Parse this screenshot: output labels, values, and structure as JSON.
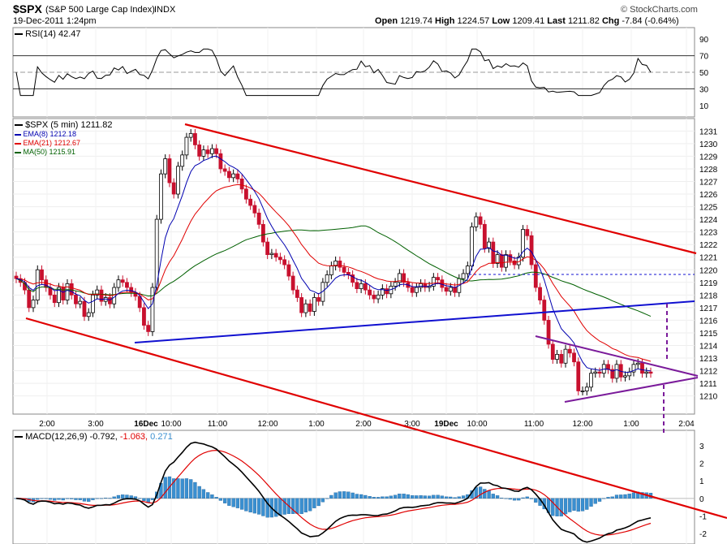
{
  "header": {
    "symbol": "$SPX",
    "name": "(S&P 500 Large Cap Index)",
    "exchange": "INDX",
    "datetime": "19-Dec-2011 1:24pm",
    "copyright": "© StockCharts.com",
    "open_label": "Open",
    "open": "1219.74",
    "high_label": "High",
    "high": "1224.57",
    "low_label": "Low",
    "low": "1209.41",
    "last_label": "Last",
    "last": "1211.82",
    "chg_label": "Chg",
    "chg": "-7.84 (-0.64%)"
  },
  "legends": {
    "rsi": "RSI(14) 42.47",
    "price": "$SPX (5 min) 1211.82",
    "ema8": "EMA(8) 1212.18",
    "ema21": "EMA(21) 1212.67",
    "ma50": "MA(50) 1215.91",
    "macd_label": "MACD(12,26,9)",
    "macd_v1": "-0.792,",
    "macd_v2": "-1.063,",
    "macd_v3": "0.271"
  },
  "colors": {
    "up_candle": "#ffffff",
    "down_candle": "#c8102e",
    "ema8": "#0000b0",
    "ema21": "#e00000",
    "ma50": "#006000",
    "trend_red": "#e00000",
    "trend_blue": "#1010d0",
    "trend_purple": "#7a1a9a",
    "histogram": "#3a8fd0"
  },
  "chart_data": {
    "type": "candlestick",
    "y_ticks": [
      "1231",
      "1230",
      "1229",
      "1228",
      "1227",
      "1226",
      "1225",
      "1224",
      "1223",
      "1222",
      "1221",
      "1220",
      "1219",
      "1218",
      "1217",
      "1216",
      "1215",
      "1214",
      "1213",
      "1212",
      "1211",
      "1210"
    ],
    "ylim": [
      1209.4,
      1231.6
    ],
    "x_ticks": [
      "2:00",
      "3:00",
      "16Dec",
      "10:00",
      "11:00",
      "12:00",
      "1:00",
      "2:00",
      "3:00",
      "19Dec",
      "10:00",
      "11:00",
      "12:00",
      "1:00",
      "2:04"
    ],
    "rsi": {
      "ylim": [
        0,
        100
      ],
      "ticks": [
        "90",
        "70",
        "50",
        "30",
        "10"
      ],
      "levels": [
        70,
        50,
        30
      ]
    },
    "macd": {
      "ylim": [
        -2.5,
        3.5
      ],
      "ticks": [
        "3",
        "2",
        "1",
        "0",
        "-1",
        "-2"
      ]
    },
    "closes": [
      1219.3,
      1219.0,
      1218.4,
      1217.0,
      1217.6,
      1220.0,
      1219.2,
      1218.6,
      1218.0,
      1217.4,
      1218.6,
      1217.6,
      1218.9,
      1218.0,
      1217.3,
      1217.5,
      1216.3,
      1216.6,
      1218.0,
      1218.4,
      1217.5,
      1217.8,
      1217.3,
      1218.6,
      1219.2,
      1219.0,
      1218.6,
      1218.2,
      1217.9,
      1217.0,
      1215.6,
      1215.1,
      1218.6,
      1224.0,
      1227.6,
      1228.8,
      1226.9,
      1226.0,
      1228.2,
      1229.1,
      1230.5,
      1230.8,
      1229.9,
      1229.0,
      1229.5,
      1229.2,
      1229.6,
      1229.2,
      1228.0,
      1227.8,
      1227.3,
      1227.6,
      1227.2,
      1226.4,
      1225.6,
      1225.1,
      1224.5,
      1223.6,
      1222.2,
      1221.2,
      1221.3,
      1221.0,
      1220.8,
      1220.4,
      1219.5,
      1218.4,
      1217.8,
      1216.6,
      1217.3,
      1216.7,
      1217.8,
      1217.5,
      1219.0,
      1219.6,
      1220.3,
      1220.7,
      1220.2,
      1219.8,
      1219.6,
      1219.0,
      1218.5,
      1218.9,
      1218.4,
      1218.0,
      1217.7,
      1218.0,
      1218.5,
      1218.1,
      1218.7,
      1219.0,
      1219.7,
      1219.0,
      1218.6,
      1218.2,
      1218.6,
      1218.9,
      1218.6,
      1218.7,
      1219.4,
      1219.2,
      1218.6,
      1218.3,
      1218.6,
      1218.2,
      1219.3,
      1219.7,
      1220.3,
      1223.4,
      1224.2,
      1223.6,
      1221.7,
      1222.2,
      1220.5,
      1221.2,
      1220.2,
      1221.2,
      1220.7,
      1220.4,
      1221.0,
      1223.2,
      1222.7,
      1220.4,
      1218.6,
      1217.6,
      1216.0,
      1214.1,
      1212.9,
      1213.3,
      1212.6,
      1213.7,
      1213.4,
      1212.7,
      1210.4,
      1210.4,
      1210.7,
      1211.8,
      1211.9,
      1211.8,
      1212.5,
      1212.1,
      1211.4,
      1212.5,
      1211.5,
      1211.6,
      1211.9,
      1212.5,
      1212.6,
      1211.8,
      1211.9,
      1211.8
    ]
  }
}
